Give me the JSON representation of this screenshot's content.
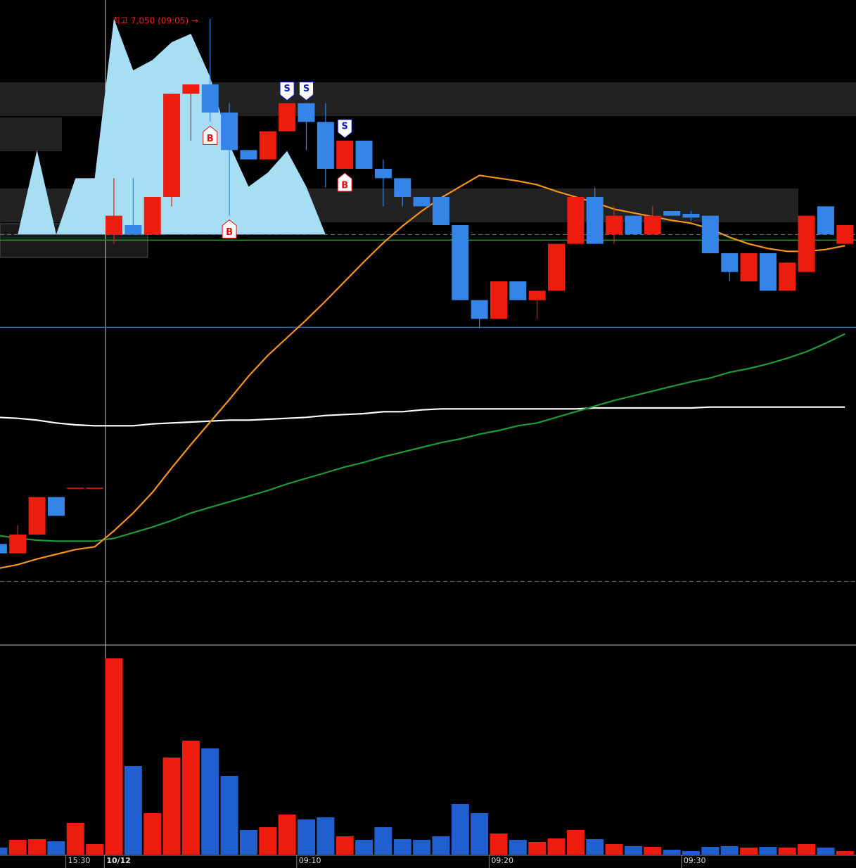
{
  "chart_data": {
    "type": "candlestick",
    "annotation": "최고 7,050 (09:05) →",
    "categories": [
      null,
      null,
      null,
      null,
      "15:30",
      null,
      "10/12",
      null,
      null,
      null,
      null,
      null,
      null,
      null,
      null,
      null,
      "09:10",
      null,
      null,
      null,
      null,
      null,
      null,
      null,
      null,
      null,
      "09:20",
      null,
      null,
      null,
      null,
      null,
      null,
      null,
      null,
      null,
      "09:30",
      null,
      null,
      null,
      null,
      null,
      null,
      null,
      null
    ],
    "ylim": [
      6380,
      7070
    ],
    "up_color": "#ee1c0e",
    "down_color": "#3584e8",
    "candles": {
      "open": [
        6490,
        6480,
        6500,
        6540,
        6550,
        6550,
        6820,
        6830,
        6820,
        6860,
        6970,
        6980,
        6950,
        6910,
        6900,
        6930,
        6960,
        6940,
        6890,
        6920,
        6890,
        6880,
        6860,
        6860,
        6830,
        6750,
        6730,
        6770,
        6750,
        6760,
        6810,
        6860,
        6820,
        6840,
        6820,
        6845,
        6842,
        6840,
        6800,
        6770,
        6800,
        6760,
        6780,
        6850,
        6810
      ],
      "high": [
        6490,
        6510,
        6540,
        6540,
        6550,
        6550,
        6880,
        6880,
        6860,
        6970,
        6980,
        7050,
        6960,
        6910,
        6930,
        6960,
        6960,
        6960,
        6920,
        6920,
        6900,
        6880,
        6860,
        6860,
        6830,
        6750,
        6770,
        6770,
        6760,
        6810,
        6860,
        6870,
        6850,
        6840,
        6850,
        6845,
        6845,
        6840,
        6800,
        6800,
        6800,
        6790,
        6840,
        6850,
        6830
      ],
      "low": [
        6480,
        6480,
        6500,
        6520,
        6550,
        6550,
        6810,
        6820,
        6820,
        6850,
        6920,
        6940,
        6840,
        6900,
        6900,
        6930,
        6910,
        6870,
        6890,
        6890,
        6850,
        6850,
        6850,
        6830,
        6750,
        6720,
        6730,
        6750,
        6730,
        6760,
        6810,
        6810,
        6810,
        6820,
        6820,
        6840,
        6835,
        6800,
        6770,
        6770,
        6760,
        6760,
        6780,
        6820,
        6810
      ],
      "close": [
        6480,
        6500,
        6540,
        6520,
        6550,
        6550,
        6840,
        6820,
        6860,
        6970,
        6980,
        6950,
        6910,
        6900,
        6930,
        6960,
        6940,
        6890,
        6920,
        6890,
        6880,
        6860,
        6850,
        6830,
        6750,
        6730,
        6770,
        6750,
        6760,
        6810,
        6860,
        6810,
        6840,
        6820,
        6840,
        6840,
        6838,
        6800,
        6780,
        6800,
        6760,
        6790,
        6840,
        6820,
        6830
      ]
    },
    "area": {
      "color": "#a8def4",
      "values": [
        null,
        6820,
        6910,
        6820,
        6880,
        6880,
        7050,
        6995,
        7006,
        7025,
        7034,
        6988,
        6916,
        6871,
        6886,
        6909,
        6871,
        6820,
        null,
        null,
        null,
        null,
        null,
        null,
        null,
        null,
        null,
        null,
        null,
        null,
        null,
        null,
        null,
        null,
        null,
        null,
        null,
        null,
        null,
        null,
        null,
        null,
        null,
        null,
        null
      ]
    },
    "lines": [
      {
        "color": "#ffffff",
        "values": [
          6625,
          6624,
          6622,
          6619,
          6617,
          6616,
          6616,
          6616,
          6618,
          6619,
          6620,
          6621,
          6622,
          6622,
          6623,
          6624,
          6625,
          6627,
          6628,
          6629,
          6631,
          6631,
          6633,
          6634,
          6634,
          6634,
          6634,
          6634,
          6634,
          6634,
          6634,
          6635,
          6635,
          6635,
          6635,
          6635,
          6635,
          6636,
          6636,
          6636,
          6636,
          6636,
          6636,
          6636,
          6636
        ]
      },
      {
        "color": "#1f9a3a",
        "values": [
          6499,
          6496,
          6494,
          6493,
          6493,
          6493,
          6496,
          6502,
          6508,
          6515,
          6523,
          6529,
          6535,
          6541,
          6547,
          6554,
          6560,
          6566,
          6572,
          6577,
          6583,
          6588,
          6593,
          6598,
          6602,
          6607,
          6611,
          6616,
          6619,
          6625,
          6631,
          6637,
          6643,
          6648,
          6653,
          6658,
          6663,
          6667,
          6673,
          6677,
          6682,
          6688,
          6695,
          6704,
          6714
        ]
      },
      {
        "color": "#f7941d",
        "values": [
          6464,
          6468,
          6474,
          6479,
          6484,
          6487,
          6504,
          6523,
          6545,
          6571,
          6596,
          6620,
          6644,
          6669,
          6691,
          6710,
          6729,
          6749,
          6770,
          6791,
          6811,
          6829,
          6845,
          6859,
          6871,
          6883,
          6880,
          6877,
          6873,
          6866,
          6860,
          6854,
          6847,
          6843,
          6839,
          6835,
          6832,
          6826,
          6817,
          6810,
          6805,
          6802,
          6802,
          6804,
          6808
        ]
      }
    ],
    "hlines": [
      {
        "value": 6820,
        "color": "#777777",
        "dashed": true
      },
      {
        "value": 6450,
        "color": "#777777",
        "dashed": true
      },
      {
        "value": 6814,
        "color": "#1fa02f",
        "dashed": false
      },
      {
        "value": 6721,
        "color": "#2f5fe0",
        "dashed": false
      }
    ],
    "signals": [
      {
        "label": "B",
        "at": 11
      },
      {
        "label": "B",
        "at": 12
      },
      {
        "label": "B",
        "at": 18
      },
      {
        "label": "S",
        "at": 15
      },
      {
        "label": "S",
        "at": 16
      },
      {
        "label": "S",
        "at": 18
      }
    ],
    "volume": {
      "ylim": [
        0,
        290
      ],
      "up_color": "#ee1c0e",
      "down_color": "#1f5fd0",
      "values": [
        10,
        21,
        22,
        19,
        45,
        15,
        279,
        126,
        59,
        138,
        162,
        151,
        112,
        35,
        39,
        57,
        50,
        53,
        26,
        21,
        39,
        22,
        21,
        26,
        72,
        59,
        30,
        21,
        18,
        23,
        35,
        22,
        15,
        12,
        11,
        7,
        5,
        11,
        12,
        10,
        11,
        10,
        15,
        10,
        5
      ]
    }
  }
}
